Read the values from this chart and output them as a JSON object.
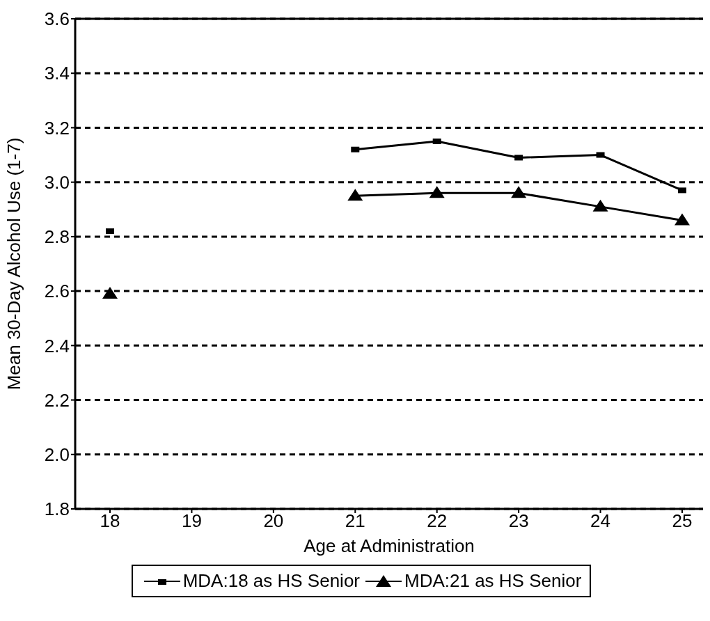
{
  "chart_data": {
    "type": "line",
    "xlabel": "Age at Administration",
    "ylabel": "Mean 30-Day Alcohol Use (1-7)",
    "categories": [
      "18",
      "19",
      "20",
      "21",
      "22",
      "23",
      "24",
      "25"
    ],
    "series": [
      {
        "name": "MDA:18 as HS Senior",
        "color": "#000000",
        "marker": "square",
        "values": [
          2.82,
          null,
          null,
          3.12,
          3.15,
          3.09,
          3.1,
          2.97
        ]
      },
      {
        "name": "MDA:21 as HS Senior",
        "color": "#000000",
        "marker": "triangle",
        "values": [
          2.59,
          null,
          null,
          2.95,
          2.96,
          2.96,
          2.91,
          2.86
        ]
      }
    ],
    "ylim": [
      1.8,
      3.6
    ],
    "yticks": [
      1.8,
      {
        "value": 2,
        "label": "2.0"
      },
      2.2,
      2.4,
      2.6,
      2.8,
      {
        "value": 3,
        "label": "3.0"
      },
      3.2,
      3.4,
      3.6
    ],
    "grid": "y",
    "legend": "bottom",
    "line_style": "solid"
  }
}
